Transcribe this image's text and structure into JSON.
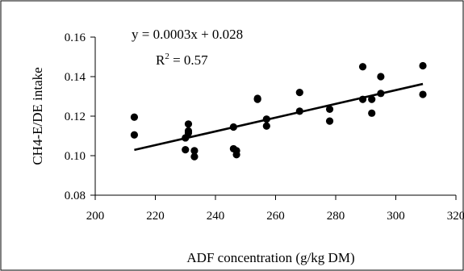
{
  "chart_data": {
    "type": "scatter",
    "xlabel": "ADF concentration (g/kg DM)",
    "ylabel": "CH4-E/DE intake",
    "xlim": [
      200,
      320
    ],
    "ylim": [
      0.08,
      0.16
    ],
    "x_ticks": [
      "200",
      "220",
      "240",
      "260",
      "280",
      "300",
      "320"
    ],
    "y_ticks": [
      "0.08",
      "0.10",
      "0.12",
      "0.14",
      "0.16"
    ],
    "grid": false,
    "legend": "none",
    "annotations": {
      "equation": "y = 0.0003x + 0.028",
      "r2_prefix": "R",
      "r2_exp": "2",
      "r2_value": " = 0.57"
    },
    "trendline": {
      "slope": 0.0003,
      "intercept": 0.028,
      "x_range": [
        213,
        309
      ],
      "y_range": [
        0.1029,
        0.1363
      ]
    },
    "series": [
      {
        "points": [
          {
            "x": 213,
            "y": 0.1195
          },
          {
            "x": 213,
            "y": 0.1105
          },
          {
            "x": 230,
            "y": 0.103
          },
          {
            "x": 230,
            "y": 0.109
          },
          {
            "x": 231,
            "y": 0.1115
          },
          {
            "x": 231,
            "y": 0.1125
          },
          {
            "x": 231,
            "y": 0.116
          },
          {
            "x": 233,
            "y": 0.1025
          },
          {
            "x": 233,
            "y": 0.0995
          },
          {
            "x": 246,
            "y": 0.1145
          },
          {
            "x": 246,
            "y": 0.1035
          },
          {
            "x": 247,
            "y": 0.1025
          },
          {
            "x": 247,
            "y": 0.1005
          },
          {
            "x": 254,
            "y": 0.129
          },
          {
            "x": 254,
            "y": 0.1285
          },
          {
            "x": 257,
            "y": 0.1185
          },
          {
            "x": 257,
            "y": 0.115
          },
          {
            "x": 268,
            "y": 0.132
          },
          {
            "x": 268,
            "y": 0.1225
          },
          {
            "x": 278,
            "y": 0.1235
          },
          {
            "x": 278,
            "y": 0.1175
          },
          {
            "x": 289,
            "y": 0.145
          },
          {
            "x": 289,
            "y": 0.1285
          },
          {
            "x": 292,
            "y": 0.1285
          },
          {
            "x": 292,
            "y": 0.1215
          },
          {
            "x": 295,
            "y": 0.14
          },
          {
            "x": 295,
            "y": 0.1315
          },
          {
            "x": 309,
            "y": 0.1455
          },
          {
            "x": 309,
            "y": 0.131
          }
        ]
      }
    ]
  }
}
